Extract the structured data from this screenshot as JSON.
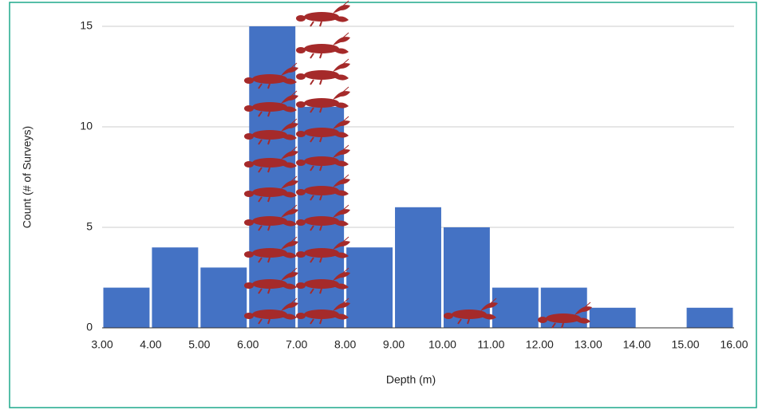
{
  "chart_data": {
    "type": "histogram",
    "xlabel": "Depth (m)",
    "ylabel": "Count (# of Surveys)",
    "bins": [
      3,
      4,
      5,
      6,
      7,
      8,
      9,
      10,
      11,
      12,
      13,
      14,
      15,
      16
    ],
    "values": [
      2,
      4,
      3,
      15,
      11,
      4,
      6,
      5,
      2,
      2,
      1,
      0,
      1
    ],
    "color": "#4472c4",
    "xlim": [
      3,
      16
    ],
    "xticks": [
      {
        "value": 3,
        "label": "3.00"
      },
      {
        "value": 4,
        "label": "4.00"
      },
      {
        "value": 5,
        "label": "5.00"
      },
      {
        "value": 6,
        "label": "6.00"
      },
      {
        "value": 7,
        "label": "7.00"
      },
      {
        "value": 8,
        "label": "8.00"
      },
      {
        "value": 9,
        "label": "9.00"
      },
      {
        "value": 10,
        "label": "10.00"
      },
      {
        "value": 11,
        "label": "11.00"
      },
      {
        "value": 12,
        "label": "12.00"
      },
      {
        "value": 13,
        "label": "13.00"
      },
      {
        "value": 14,
        "label": "14.00"
      },
      {
        "value": 15,
        "label": "15.00"
      },
      {
        "value": 16,
        "label": "16.00"
      }
    ],
    "ylim": [
      0,
      15
    ],
    "yticks": [
      0,
      5,
      10,
      15
    ],
    "grid": true
  }
}
